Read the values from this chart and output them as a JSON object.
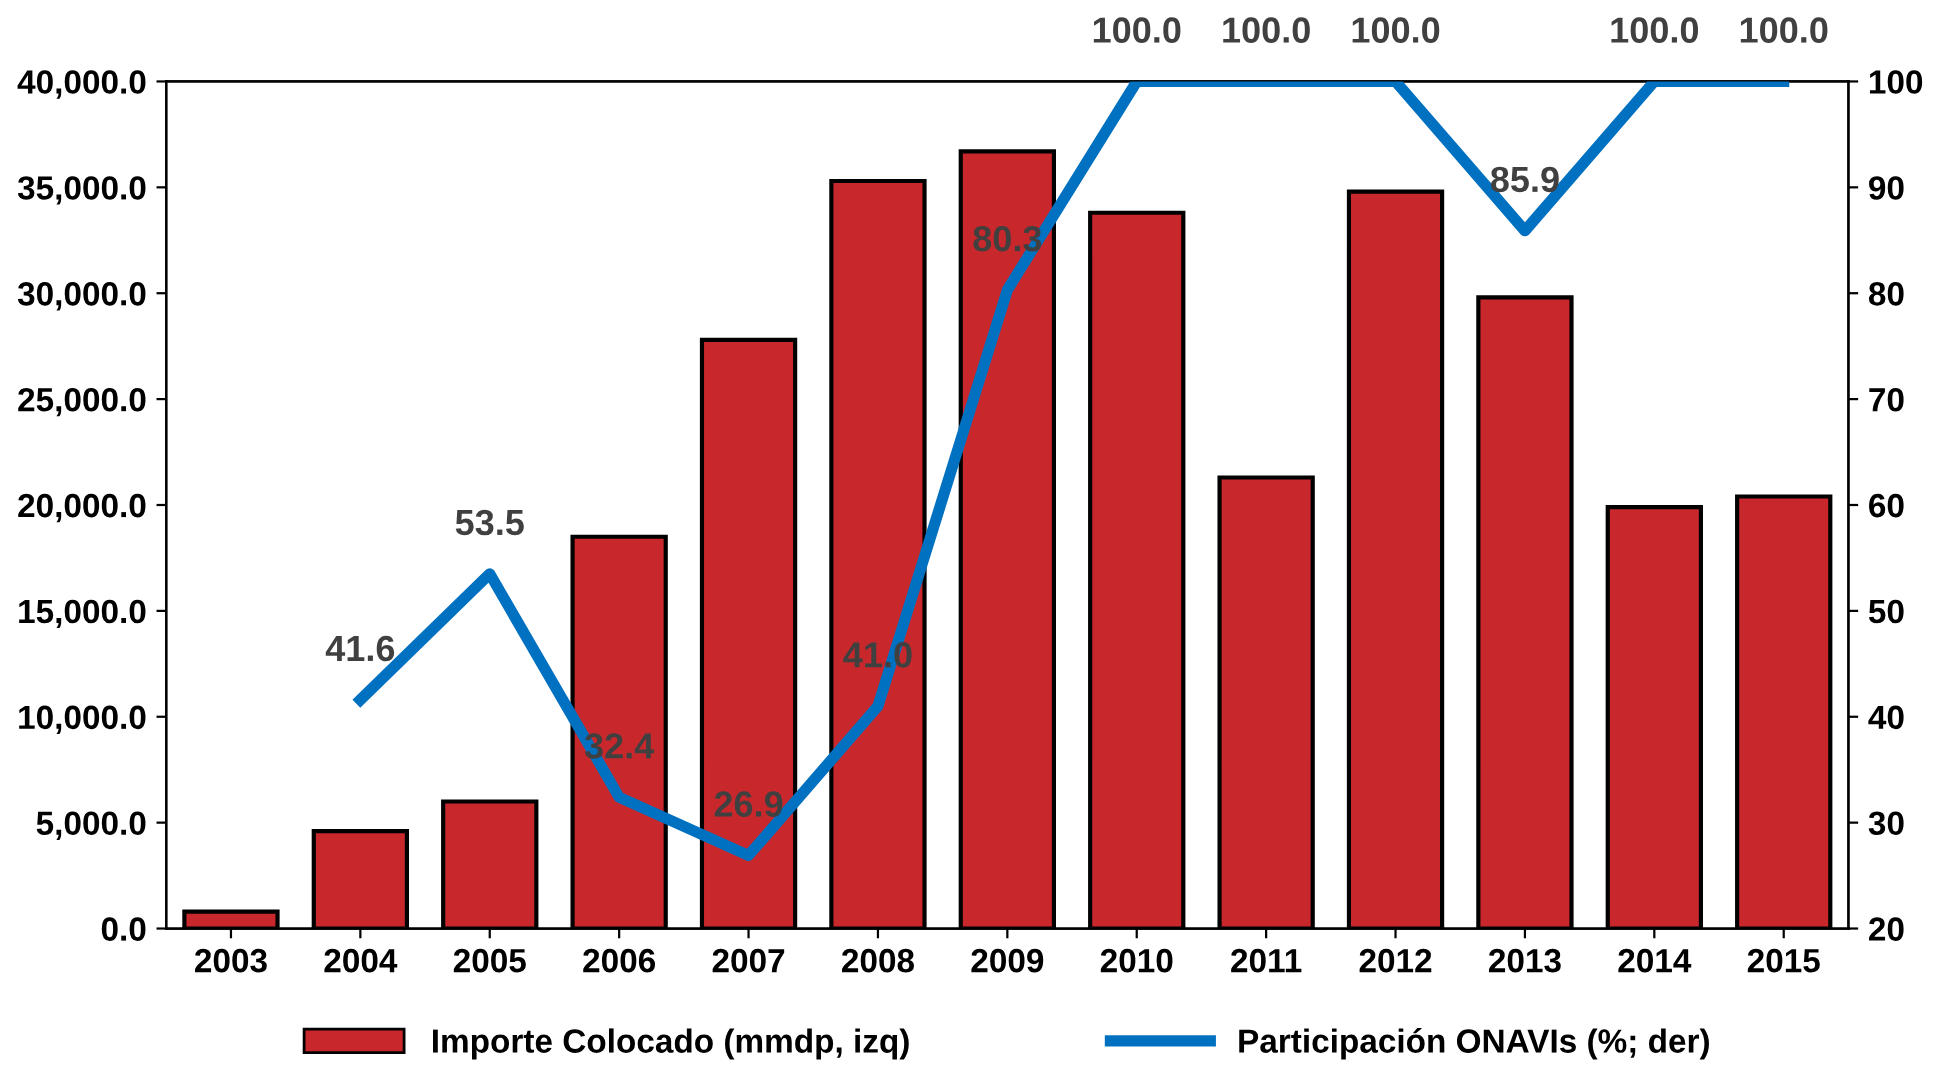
{
  "chart_data": {
    "type": "bar",
    "categories": [
      "2003",
      "2004",
      "2005",
      "2006",
      "2007",
      "2008",
      "2009",
      "2010",
      "2011",
      "2012",
      "2013",
      "2014",
      "2015"
    ],
    "series": [
      {
        "name": "Importe Colocado (mmdp, izq)",
        "color": "#c8282c",
        "values": [
          800,
          4600,
          6000,
          18500,
          27800,
          35300,
          36700,
          33800,
          21300,
          34800,
          29800,
          19900,
          20400
        ]
      },
      {
        "name": "Participación ONAVIs (%; der)",
        "type": "line",
        "axis": "y2",
        "color": "#0070c0",
        "values": [
          null,
          41.6,
          53.5,
          32.4,
          26.9,
          41.0,
          80.3,
          100.0,
          100.0,
          100.0,
          85.9,
          100.0,
          100.0
        ],
        "value_labels": [
          null,
          "41.6",
          "53.5",
          "32.4",
          "26.9",
          "41.0",
          "80.3",
          "100.0",
          "100.0",
          "100.0",
          "85.9",
          "100.0",
          "100.0"
        ]
      }
    ],
    "ylim": [
      0,
      40000
    ],
    "yticks": [
      {
        "value": 0,
        "label": "0.0"
      },
      {
        "value": 5000,
        "label": "5,000.0"
      },
      {
        "value": 10000,
        "label": "10,000.0"
      },
      {
        "value": 15000,
        "label": "15,000.0"
      },
      {
        "value": 20000,
        "label": "20,000.0"
      },
      {
        "value": 25000,
        "label": "25,000.0"
      },
      {
        "value": 30000,
        "label": "30,000.0"
      },
      {
        "value": 35000,
        "label": "35,000.0"
      },
      {
        "value": 40000,
        "label": "40,000.0"
      }
    ],
    "y2lim": [
      20,
      100
    ],
    "y2ticks": [
      20,
      30,
      40,
      50,
      60,
      70,
      80,
      90,
      100
    ],
    "grid": false,
    "legend": "bottom",
    "marker": "none",
    "line_style": "solid"
  }
}
